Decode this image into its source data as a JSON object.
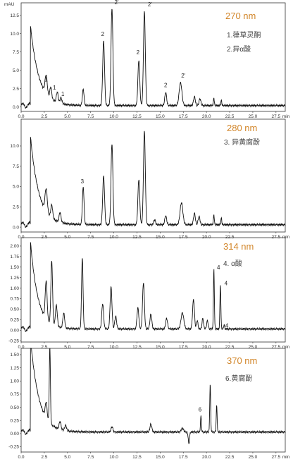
{
  "chart_data": [
    {
      "type": "line",
      "panel": "270nm",
      "wavelength": "270 nm",
      "wavelength_color": "#d2862a",
      "y_unit": "mAU",
      "x_unit": "min",
      "xlim": [
        0,
        28.5
      ],
      "ylim": [
        -0.6,
        14.2
      ],
      "yticks": [
        "0.0",
        "2.5",
        "5.0",
        "7.5",
        "10.0",
        "12.5"
      ],
      "xticks": [
        "0.0",
        "2.5",
        "5.0",
        "7.5",
        "10.0",
        "12.5",
        "15.0",
        "17.5",
        "20.0",
        "22.5",
        "25.0",
        "27.5"
      ],
      "legend": [
        "1.葎草灵酮",
        "2.异α酸"
      ],
      "baseline": 0.2,
      "initial": {
        "start": 1.0,
        "amp": 11,
        "tau": 0.9
      },
      "peaks": [
        [
          2.7,
          2.5,
          0.12
        ],
        [
          3.2,
          1.6,
          0.1
        ],
        [
          3.9,
          1.4,
          0.1
        ],
        [
          4.3,
          0.8,
          0.1
        ],
        [
          6.7,
          2.2,
          0.09
        ],
        [
          8.9,
          8.8,
          0.1
        ],
        [
          9.8,
          13.3,
          0.1
        ],
        [
          12.7,
          6.2,
          0.1
        ],
        [
          13.3,
          12.8,
          0.1
        ],
        [
          15.6,
          1.8,
          0.1
        ],
        [
          17.2,
          3.1,
          0.15
        ],
        [
          18.7,
          1.2,
          0.1
        ],
        [
          19.3,
          0.9,
          0.1
        ],
        [
          20.8,
          1.0,
          0.05
        ],
        [
          21.6,
          0.7,
          0.05
        ]
      ],
      "labels": [
        {
          "x": 2.7,
          "y": 3.5,
          "text": "1"
        },
        {
          "x": 3.6,
          "y": 2.4,
          "text": "1"
        },
        {
          "x": 4.5,
          "y": 1.5,
          "text": "1"
        },
        {
          "x": 8.8,
          "y": 9.7,
          "text": "2"
        },
        {
          "x": 10.3,
          "y": 14.0,
          "text": "2'"
        },
        {
          "x": 12.6,
          "y": 7.2,
          "text": "2"
        },
        {
          "x": 13.9,
          "y": 13.7,
          "text": "2'"
        },
        {
          "x": 15.6,
          "y": 2.7,
          "text": "2"
        },
        {
          "x": 17.5,
          "y": 4.0,
          "text": "2'"
        }
      ]
    },
    {
      "type": "line",
      "panel": "280nm",
      "wavelength": "280 nm",
      "wavelength_color": "#d2862a",
      "x_unit": "min",
      "xlim": [
        0,
        28.5
      ],
      "ylim": [
        -0.6,
        13.3
      ],
      "yticks": [
        "0.0",
        "2.5",
        "5.0",
        "7.5",
        "10.0"
      ],
      "xticks": [
        "0.0",
        "2.5",
        "5.0",
        "7.5",
        "10.0",
        "12.5",
        "15.0",
        "17.5",
        "20.0",
        "22.5",
        "27.5"
      ],
      "legend": [
        "3. 异黄腐酚"
      ],
      "baseline": 0.3,
      "initial": {
        "start": 1.0,
        "amp": 11,
        "tau": 0.9
      },
      "peaks": [
        [
          2.7,
          2.8,
          0.12
        ],
        [
          3.3,
          1.6,
          0.1
        ],
        [
          4.2,
          1.2,
          0.1
        ],
        [
          6.7,
          4.6,
          0.09
        ],
        [
          8.9,
          6.0,
          0.1
        ],
        [
          9.8,
          10.0,
          0.1
        ],
        [
          12.7,
          5.6,
          0.1
        ],
        [
          13.3,
          11.5,
          0.1
        ],
        [
          14.4,
          0.6,
          0.1
        ],
        [
          15.6,
          1.1,
          0.1
        ],
        [
          17.3,
          2.7,
          0.15
        ],
        [
          18.7,
          1.4,
          0.1
        ],
        [
          19.2,
          1.0,
          0.1
        ],
        [
          20.8,
          1.2,
          0.05
        ],
        [
          21.6,
          0.8,
          0.05
        ]
      ],
      "labels": [
        {
          "x": 6.6,
          "y": 5.4,
          "text": "3"
        }
      ]
    },
    {
      "type": "line",
      "panel": "314nm",
      "wavelength": "314 nm",
      "wavelength_color": "#d2862a",
      "x_unit": "min",
      "xlim": [
        0,
        28.5
      ],
      "ylim": [
        -0.28,
        2.2
      ],
      "yticks": [
        "-0.25",
        "0.00",
        "0.25",
        "0.50",
        "0.75",
        "1.00",
        "1.25",
        "1.50",
        "1.75",
        "2.00"
      ],
      "xticks": [
        "0.0",
        "2.5",
        "5.0",
        "7.5",
        "10.0",
        "12.5",
        "15.0",
        "17.5",
        "20.0",
        "22.5",
        "25.0",
        "27.5"
      ],
      "legend": [
        "4. α酸"
      ],
      "baseline": 0.03,
      "initial": {
        "start": 1.0,
        "amp": 2.1,
        "tau": 0.8
      },
      "peaks": [
        [
          2.7,
          0.9,
          0.1
        ],
        [
          3.3,
          1.5,
          0.09
        ],
        [
          3.8,
          0.5,
          0.1
        ],
        [
          4.6,
          0.35,
          0.1
        ],
        [
          6.6,
          1.7,
          0.08
        ],
        [
          8.8,
          0.6,
          0.1
        ],
        [
          9.7,
          1.0,
          0.1
        ],
        [
          10.2,
          0.3,
          0.1
        ],
        [
          12.6,
          0.5,
          0.1
        ],
        [
          13.2,
          1.1,
          0.1
        ],
        [
          14.0,
          0.35,
          0.1
        ],
        [
          15.7,
          0.25,
          0.1
        ],
        [
          17.4,
          0.38,
          0.15
        ],
        [
          18.6,
          0.7,
          0.1
        ],
        [
          19.0,
          0.2,
          0.08
        ],
        [
          19.6,
          0.25,
          0.08
        ],
        [
          20.1,
          0.2,
          0.08
        ],
        [
          20.8,
          1.42,
          0.05
        ],
        [
          21.5,
          1.05,
          0.05
        ],
        [
          21.9,
          0.1,
          0.05
        ]
      ],
      "labels": [
        {
          "x": 21.3,
          "y": 1.45,
          "text": "4"
        },
        {
          "x": 22.1,
          "y": 1.07,
          "text": "4"
        },
        {
          "x": 22.2,
          "y": 0.06,
          "text": "4"
        }
      ]
    },
    {
      "type": "line",
      "panel": "370nm",
      "wavelength": "370 nm",
      "wavelength_color": "#d2862a",
      "x_unit": "min",
      "xlim": [
        0,
        28.5
      ],
      "ylim": [
        -0.35,
        1.62
      ],
      "yticks": [
        "-0.25",
        "0.00",
        "0.25",
        "0.50",
        "0.75",
        "1.00",
        "1.25",
        "1.50"
      ],
      "xticks": [
        "0.0",
        "2.5",
        "5.0",
        "7.5",
        "10.0",
        "12.5",
        "15.0",
        "17.5",
        "20.0",
        "22.5",
        "25.0",
        "27.5"
      ],
      "legend": [
        "6.黄腐酚"
      ],
      "baseline": 0.03,
      "initial": {
        "start": 1.0,
        "amp": 1.8,
        "tau": 0.9
      },
      "peaks": [
        [
          2.7,
          0.3,
          0.1
        ],
        [
          3.1,
          1.45,
          0.06
        ],
        [
          4.2,
          0.15,
          0.1
        ],
        [
          4.8,
          0.1,
          0.1
        ],
        [
          9.8,
          0.1,
          0.1
        ],
        [
          14.0,
          0.15,
          0.1
        ],
        [
          17.4,
          0.07,
          0.12
        ],
        [
          18.1,
          -0.22,
          0.07
        ],
        [
          19.4,
          0.3,
          0.05
        ],
        [
          20.4,
          0.9,
          0.05
        ],
        [
          21.1,
          0.5,
          0.05
        ]
      ],
      "labels": [
        {
          "x": 19.3,
          "y": 0.42,
          "text": "6"
        }
      ]
    }
  ]
}
